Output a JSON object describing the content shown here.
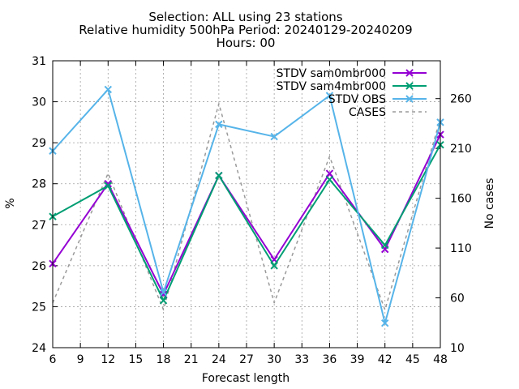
{
  "chart_data": {
    "type": "line",
    "title_lines": [
      "Selection: ALL using    23 stations",
      "Relative humidity 500hPa   Period: 20240129-20240209",
      "Hours: 00"
    ],
    "xlabel": "Forecast length",
    "ylabel": "%",
    "y2label": "No cases",
    "x": [
      6,
      12,
      18,
      24,
      30,
      36,
      42,
      48
    ],
    "xlim": [
      6,
      48
    ],
    "xticks": [
      6,
      9,
      12,
      15,
      18,
      21,
      24,
      27,
      30,
      33,
      36,
      39,
      42,
      45,
      48
    ],
    "ylim": [
      24,
      31
    ],
    "yticks": [
      24,
      25,
      26,
      27,
      28,
      29,
      30,
      31
    ],
    "y2lim": [
      10,
      298
    ],
    "y2ticks": [
      10,
      60,
      110,
      160,
      210,
      260
    ],
    "grid": true,
    "legend_position": "top-right",
    "series": [
      {
        "name": "STDV sam0mbr000",
        "axis": "y1",
        "color": "#9400d3",
        "style": "solid",
        "marker": "x",
        "values": [
          26.05,
          28.0,
          25.3,
          28.2,
          26.15,
          28.25,
          26.4,
          29.2
        ]
      },
      {
        "name": "STDV sam4mbr000",
        "axis": "y1",
        "color": "#009e73",
        "style": "solid",
        "marker": "x",
        "values": [
          27.2,
          27.95,
          25.15,
          28.2,
          26.0,
          28.1,
          26.5,
          28.95
        ]
      },
      {
        "name": "STDV OBS",
        "axis": "y1",
        "color": "#56b4e9",
        "style": "solid",
        "marker": "x",
        "values": [
          28.8,
          30.3,
          25.35,
          29.45,
          29.15,
          30.15,
          24.6,
          29.5
        ]
      },
      {
        "name": "CASES",
        "axis": "y2",
        "color": "#9a9a9a",
        "style": "dashed",
        "marker": "none",
        "values": [
          55,
          185,
          48,
          255,
          55,
          202,
          48,
          240
        ]
      }
    ]
  }
}
